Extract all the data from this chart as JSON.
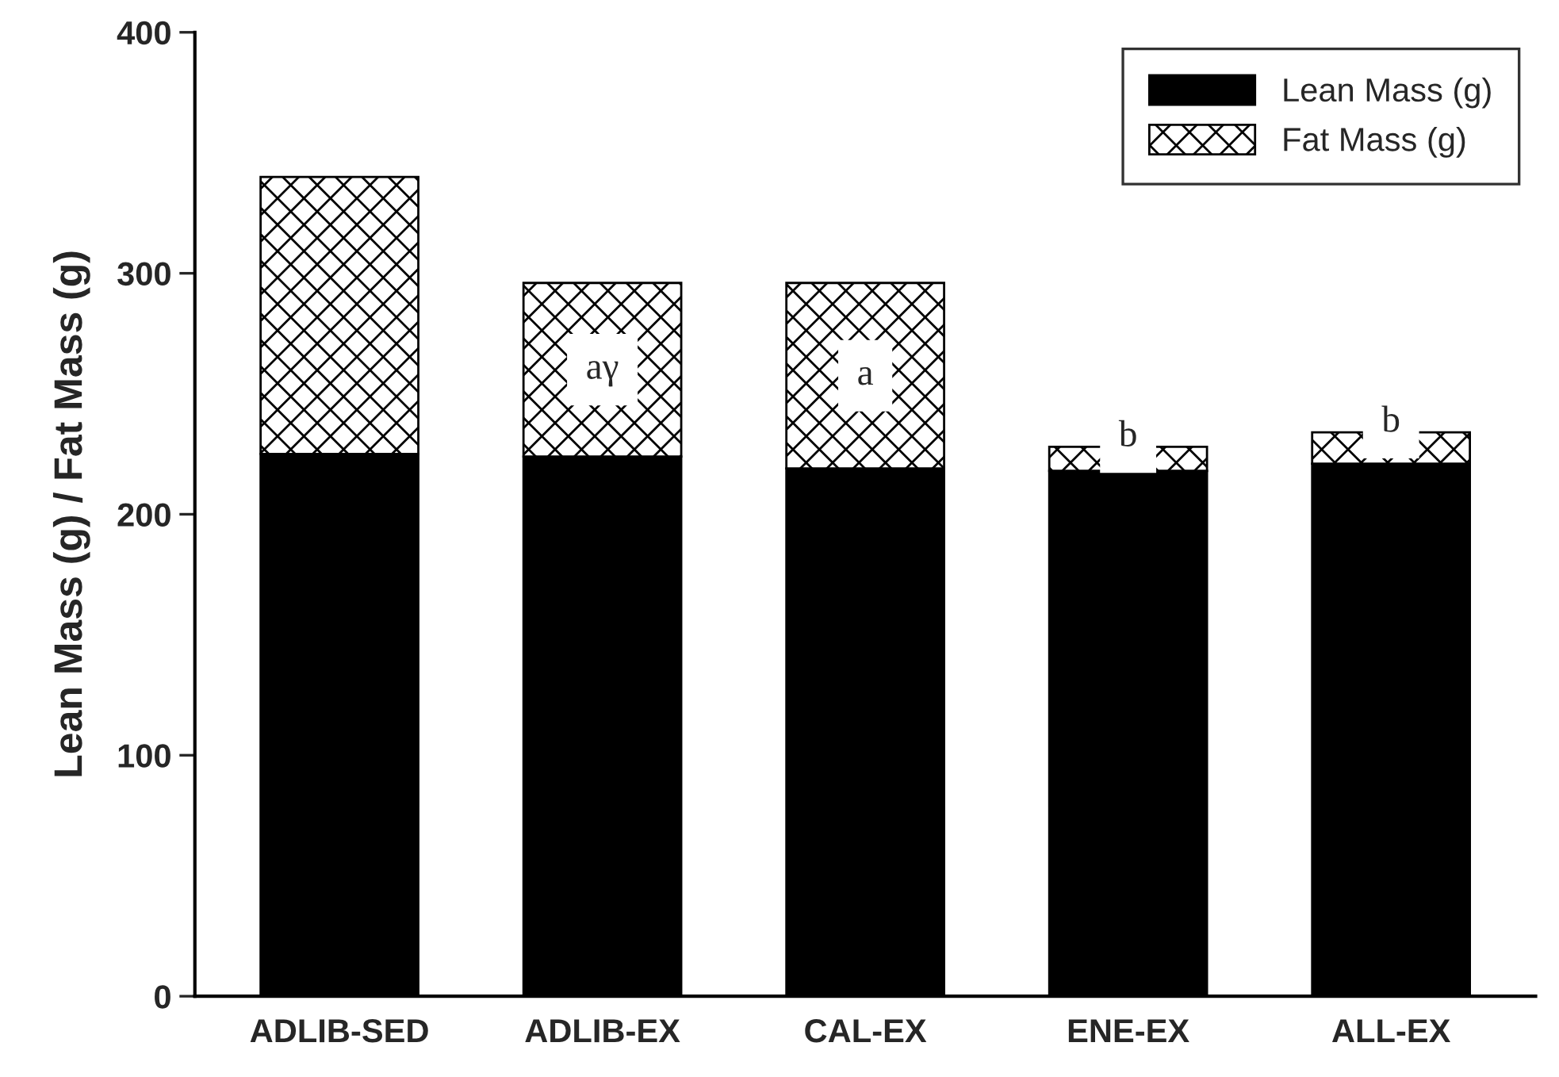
{
  "chart_data": {
    "type": "bar",
    "stacked": true,
    "ylabel": "Lean Mass (g) / Fat Mass (g)",
    "categories": [
      "ADLIB-SED",
      "ADLIB-EX",
      "CAL-EX",
      "ENE-EX",
      "ALL-EX"
    ],
    "series": [
      {
        "name": "Lean Mass (g)",
        "color": "#000000",
        "values": [
          225,
          224,
          219,
          218,
          221
        ]
      },
      {
        "name": "Fat Mass (g)",
        "color": "#000000",
        "values": [
          115,
          72,
          77,
          10,
          13
        ]
      }
    ],
    "ylim": [
      0,
      400
    ],
    "yticks": [
      0,
      100,
      200,
      300,
      400
    ],
    "legend": "top right",
    "grid": false,
    "annotations": [
      "aγ",
      "a",
      "b",
      "b"
    ]
  }
}
